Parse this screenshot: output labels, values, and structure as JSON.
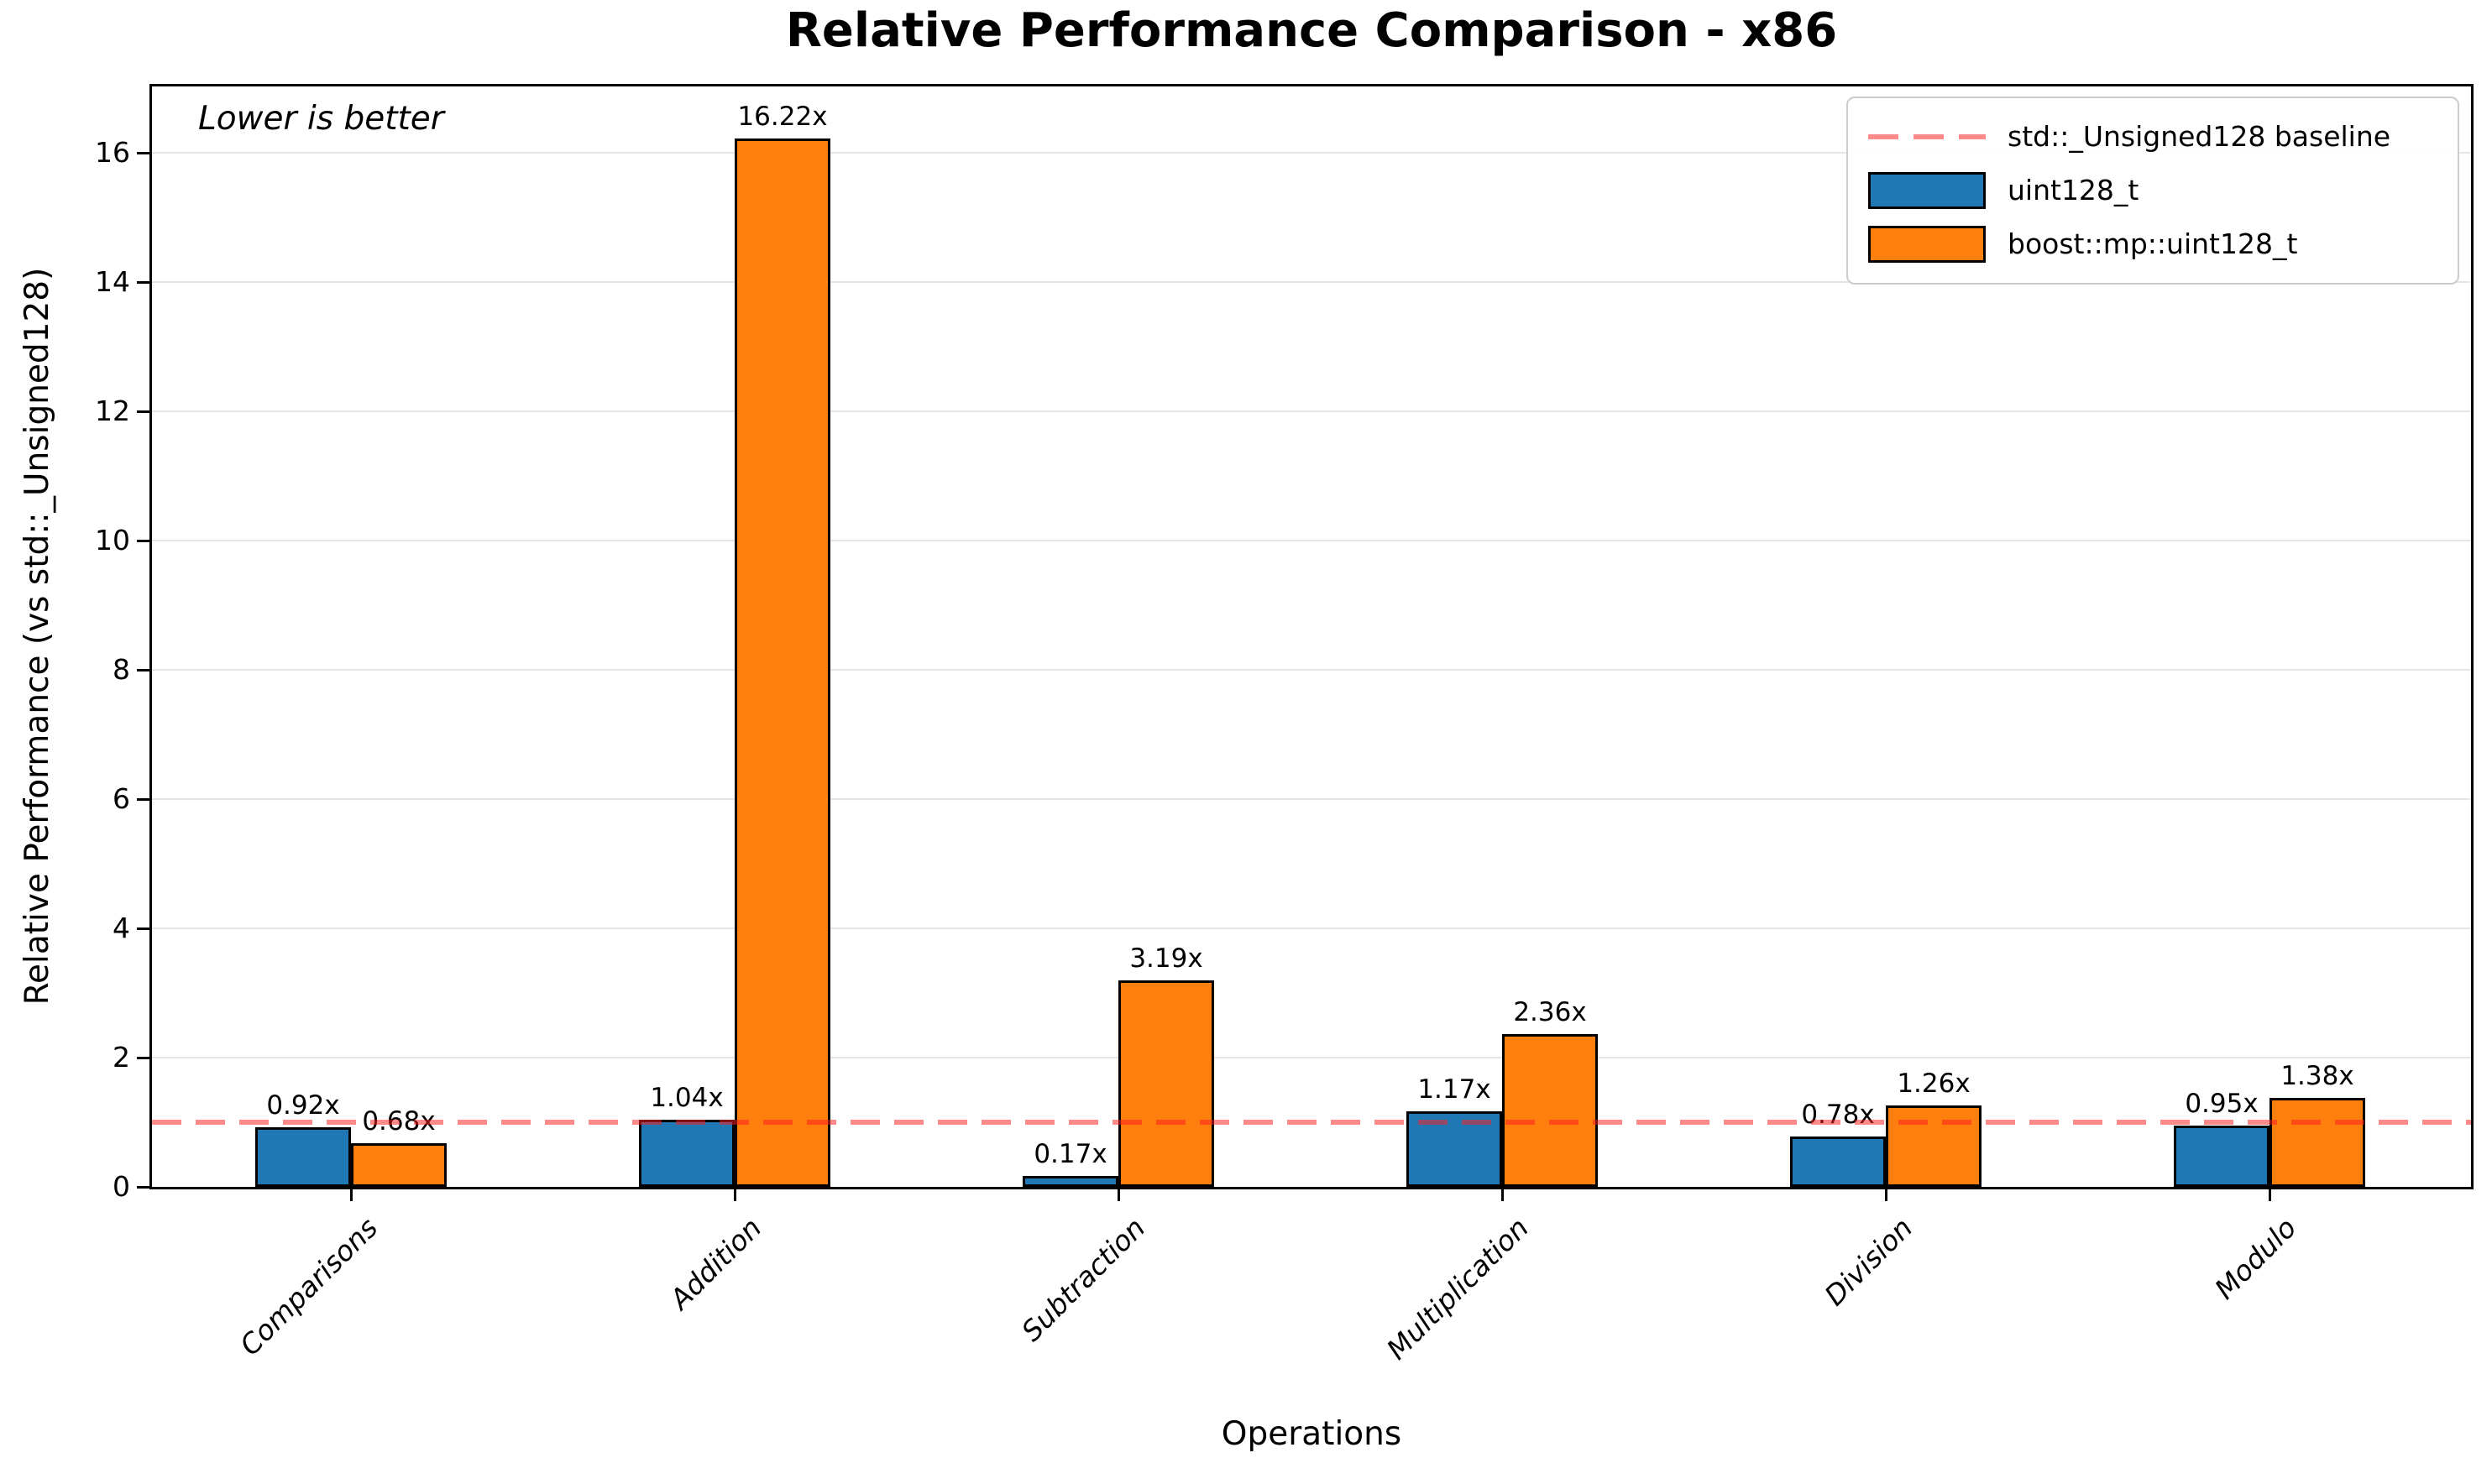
{
  "chart_data": {
    "type": "bar",
    "title": "Relative Performance Comparison - x86",
    "xlabel": "Operations",
    "ylabel": "Relative Performance (vs std::_Unsigned128)",
    "annotation": "Lower is better",
    "categories": [
      "Comparisons",
      "Addition",
      "Subtraction",
      "Multiplication",
      "Division",
      "Modulo"
    ],
    "series": [
      {
        "name": "uint128_t",
        "color": "#1f77b4",
        "values": [
          0.92,
          1.04,
          0.17,
          1.17,
          0.78,
          0.95
        ],
        "bar_labels": [
          "0.92x",
          "1.04x",
          "0.17x",
          "1.17x",
          "0.78x",
          "0.95x"
        ]
      },
      {
        "name": "boost::mp::uint128_t",
        "color": "#ff7f0e",
        "values": [
          0.68,
          16.22,
          3.19,
          2.36,
          1.26,
          1.38
        ],
        "bar_labels": [
          "0.68x",
          "16.22x",
          "3.19x",
          "2.36x",
          "1.26x",
          "1.38x"
        ]
      }
    ],
    "baseline": {
      "value": 1,
      "label": "std::_Unsigned128 baseline",
      "color": "#ff8080",
      "linestyle": "dashed"
    },
    "yticks": [
      0,
      2,
      4,
      6,
      8,
      10,
      12,
      14,
      16
    ],
    "ylim": [
      0,
      17.03
    ],
    "grid": true,
    "legend_position": "upper right",
    "bar_edge_color": "#000000",
    "background_color": "#ffffff"
  }
}
